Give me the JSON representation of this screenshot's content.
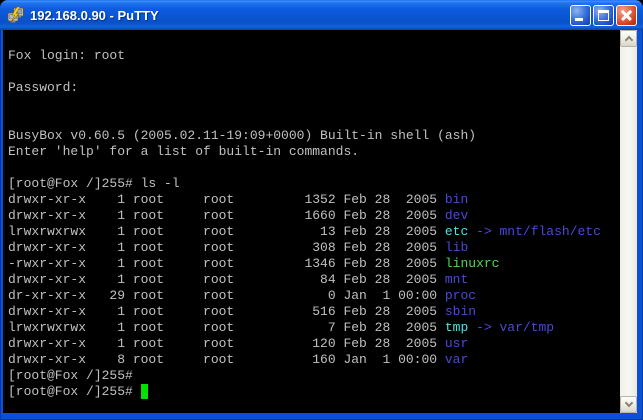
{
  "window": {
    "title": "192.168.0.90 - PuTTY"
  },
  "titlebar": {
    "icons": {
      "app": "putty-terminals-icon",
      "minimize": "minimize-icon",
      "maximize": "maximize-icon",
      "close": "close-icon"
    }
  },
  "colors": {
    "titlebar_blue": "#0d5ce0",
    "border_blue": "#0a50d8",
    "terminal_background": "#000000",
    "default_text": "#c0c0c0",
    "directory_blue": "#4a4ad4",
    "symlink_cyan": "#55dede",
    "executable_green": "#53d653",
    "cursor_green": "#00e400",
    "close_button_red": "#cc3a18"
  },
  "scrollbar": {
    "up_icon": "chevron-up-icon",
    "down_icon": "chevron-down-icon"
  },
  "terminal": {
    "lines": [
      "",
      [
        [
          "fg",
          "Fox login: root"
        ]
      ],
      "",
      [
        [
          "fg",
          "Password:"
        ]
      ],
      "",
      "",
      [
        [
          "fg",
          "BusyBox v0.60.5 (2005.02.11-19:09+0000) Built-in shell (ash)"
        ]
      ],
      [
        [
          "fg",
          "Enter 'help' for a list of built-in commands."
        ]
      ],
      "",
      [
        [
          "fg",
          "[root@Fox /]255# ls -l"
        ]
      ],
      [
        [
          "fg",
          "drwxr-xr-x    1 root     root         1352 Feb 28  2005 "
        ],
        [
          "dir",
          "bin"
        ]
      ],
      [
        [
          "fg",
          "drwxr-xr-x    1 root     root         1660 Feb 28  2005 "
        ],
        [
          "dir",
          "dev"
        ]
      ],
      [
        [
          "fg",
          "lrwxrwxrwx    1 root     root           13 Feb 28  2005 "
        ],
        [
          "link",
          "etc"
        ],
        [
          "dir",
          " -> mnt/flash/etc"
        ]
      ],
      [
        [
          "fg",
          "drwxr-xr-x    1 root     root          308 Feb 28  2005 "
        ],
        [
          "dir",
          "lib"
        ]
      ],
      [
        [
          "fg",
          "-rwxr-xr-x    1 root     root         1346 Feb 28  2005 "
        ],
        [
          "exec",
          "linuxrc"
        ]
      ],
      [
        [
          "fg",
          "drwxr-xr-x    1 root     root           84 Feb 28  2005 "
        ],
        [
          "dir",
          "mnt"
        ]
      ],
      [
        [
          "fg",
          "dr-xr-xr-x   29 root     root            0 Jan  1 00:00 "
        ],
        [
          "dir",
          "proc"
        ]
      ],
      [
        [
          "fg",
          "drwxr-xr-x    1 root     root          516 Feb 28  2005 "
        ],
        [
          "dir",
          "sbin"
        ]
      ],
      [
        [
          "fg",
          "lrwxrwxrwx    1 root     root            7 Feb 28  2005 "
        ],
        [
          "link",
          "tmp"
        ],
        [
          "dir",
          " -> var/tmp"
        ]
      ],
      [
        [
          "fg",
          "drwxr-xr-x    1 root     root          120 Feb 28  2005 "
        ],
        [
          "dir",
          "usr"
        ]
      ],
      [
        [
          "fg",
          "drwxr-xr-x    8 root     root          160 Jan  1 00:00 "
        ],
        [
          "dir",
          "var"
        ]
      ],
      [
        [
          "fg",
          "[root@Fox /]255#"
        ]
      ],
      [
        [
          "fg",
          "[root@Fox /]255# "
        ],
        [
          "cursor",
          " "
        ]
      ]
    ]
  }
}
